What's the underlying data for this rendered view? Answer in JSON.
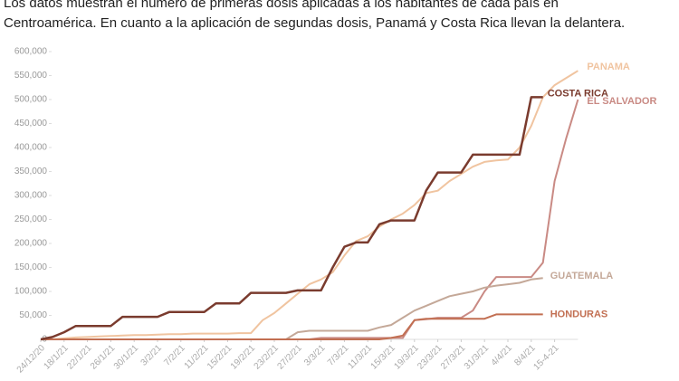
{
  "chart_data": {
    "type": "line",
    "title_lines": [
      "Los datos muestran el número de primeras dosis aplicadas a los habitantes de cada país en",
      "Centroamérica. En cuanto a la aplicación de segundas dosis, Panamá y Costa Rica llevan la delantera."
    ],
    "categories": [
      "24/12/20",
      null,
      "18/1/21",
      null,
      "22/1/21",
      null,
      "26/1/21",
      null,
      "30/1/21",
      null,
      "3/2/21",
      null,
      "7/2/21",
      null,
      "11/2/21",
      null,
      "15/2/21",
      null,
      "19/2/21",
      null,
      "23/2/21",
      null,
      "27/2/21",
      null,
      "3/3/21",
      null,
      "7/3/21",
      null,
      "11/3/21",
      null,
      "15/3/21",
      null,
      "19/3/21",
      null,
      "23/3/21",
      null,
      "27/3/21",
      null,
      "31/3/21",
      null,
      "4/4/21",
      null,
      "8/4/21",
      null,
      "15-4-21",
      null,
      null
    ],
    "ylim": [
      0,
      600000
    ],
    "yticks": [
      0,
      {
        "value": 50000,
        "label": "50,000"
      },
      {
        "value": 100000,
        "label": "100,000"
      },
      {
        "value": 150000,
        "label": "150,000"
      },
      {
        "value": 200000,
        "label": "200,000"
      },
      {
        "value": 250000,
        "label": "250,000"
      },
      {
        "value": 300000,
        "label": "300,000"
      },
      {
        "value": 350000,
        "label": "350,000"
      },
      {
        "value": 400000,
        "label": "400,000"
      },
      {
        "value": 450000,
        "label": "450,000"
      },
      {
        "value": 500000,
        "label": "500,000"
      },
      {
        "value": 550000,
        "label": "550,000"
      },
      {
        "value": 600000,
        "label": "600,000"
      }
    ],
    "series": [
      {
        "name": "PANAMA",
        "color": "#f0c4a0",
        "values": [
          0,
          0,
          2000,
          4000,
          5000,
          6000,
          7000,
          8000,
          9000,
          9000,
          10000,
          11000,
          11000,
          12000,
          12000,
          12000,
          12000,
          13000,
          13000,
          40000,
          55000,
          75000,
          95000,
          115000,
          125000,
          140000,
          175000,
          205000,
          215000,
          235000,
          250000,
          262000,
          280000,
          305000,
          310000,
          330000,
          345000,
          360000,
          370000,
          373000,
          375000,
          400000,
          445000,
          505000,
          530000,
          545000,
          560000
        ]
      },
      {
        "name": "EL SALVADOR",
        "color": "#c98a84",
        "values": [
          0,
          0,
          0,
          0,
          0,
          0,
          0,
          0,
          0,
          0,
          0,
          0,
          0,
          0,
          0,
          0,
          0,
          0,
          0,
          0,
          0,
          0,
          0,
          0,
          3000,
          3000,
          3000,
          3000,
          3000,
          3000,
          3000,
          3000,
          40000,
          42000,
          45000,
          45000,
          45000,
          60000,
          100000,
          130000,
          130000,
          130000,
          130000,
          160000,
          330000,
          420000,
          500000
        ]
      },
      {
        "name": "GUATEMALA",
        "color": "#c4a898",
        "values": [
          0,
          0,
          0,
          0,
          0,
          0,
          0,
          0,
          0,
          0,
          0,
          0,
          0,
          0,
          0,
          0,
          0,
          0,
          0,
          0,
          0,
          0,
          15000,
          18000,
          18000,
          18000,
          18000,
          18000,
          18000,
          25000,
          30000,
          45000,
          60000,
          70000,
          80000,
          90000,
          95000,
          100000,
          108000,
          112000,
          115000,
          118000,
          125000,
          128000,
          null,
          null,
          null
        ]
      },
      {
        "name": "HONDURAS",
        "color": "#c26f52",
        "values": [
          0,
          0,
          0,
          0,
          0,
          0,
          0,
          0,
          0,
          0,
          0,
          0,
          0,
          0,
          0,
          0,
          0,
          0,
          0,
          0,
          0,
          0,
          0,
          0,
          0,
          0,
          0,
          0,
          0,
          0,
          3000,
          8000,
          40000,
          43000,
          43000,
          43000,
          43000,
          43000,
          43000,
          52000,
          52000,
          52000,
          52000,
          52000,
          null,
          null,
          null
        ]
      },
      {
        "name": "COSTA RICA",
        "color": "#7a3b2e",
        "values": [
          0,
          5000,
          15000,
          28000,
          28000,
          28000,
          28000,
          47000,
          47000,
          47000,
          47000,
          57000,
          57000,
          57000,
          57000,
          75000,
          75000,
          75000,
          97000,
          97000,
          97000,
          97000,
          102000,
          102000,
          102000,
          150000,
          193000,
          202000,
          202000,
          240000,
          248000,
          248000,
          248000,
          310000,
          348000,
          348000,
          348000,
          385000,
          385000,
          385000,
          385000,
          385000,
          505000,
          505000,
          null,
          null,
          null
        ]
      }
    ]
  }
}
